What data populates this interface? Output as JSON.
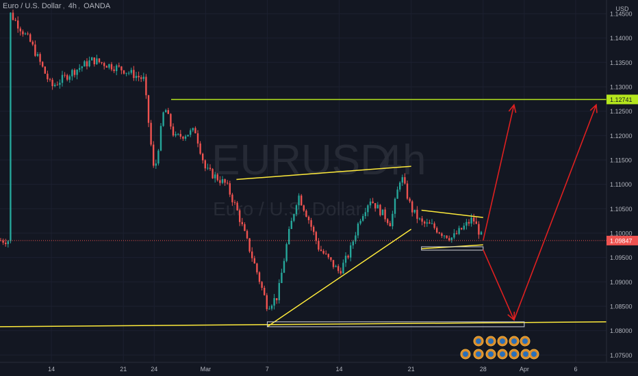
{
  "header": {
    "symbol_name": "Euro / U.S. Dollar",
    "timeframe": "4h",
    "broker": "OANDA"
  },
  "watermark": {
    "symbol": "EURUSD",
    "timeframe": "4h",
    "description": "Euro / U.S. Dollar"
  },
  "price_axis": {
    "currency": "USD",
    "ticks": [
      "1.14500",
      "1.14000",
      "1.13500",
      "1.13000",
      "1.12500",
      "1.12000",
      "1.11500",
      "1.11000",
      "1.10500",
      "1.10000",
      "1.09500",
      "1.09000",
      "1.08500",
      "1.08000",
      "1.07500"
    ],
    "level_label": "1.12741",
    "current_label": "1.09847"
  },
  "time_axis": {
    "ticks": [
      "14",
      "21",
      "24",
      "Mar",
      "7",
      "14",
      "21",
      "28",
      "Apr",
      "6"
    ]
  },
  "colors": {
    "background": "#131722",
    "up": "#26a69a",
    "down": "#ef5350",
    "trendline": "#ffeb3b",
    "level_line": "#b5e61d",
    "arrow": "#e02020",
    "axis_text": "#b2b5be"
  },
  "chart_data": {
    "type": "candlestick",
    "instrument": "EURUSD",
    "timeframe": "4h",
    "x_range": [
      "Feb 9",
      "Apr 9"
    ],
    "ylim": [
      1.0735,
      1.1478
    ],
    "last_price": 1.09847,
    "resistance_level": 1.12741,
    "support_level": 1.081,
    "candle_path": [
      {
        "date": "Feb 10",
        "close": 1.145
      },
      {
        "date": "Feb 11",
        "close": 1.142
      },
      {
        "date": "Feb 12",
        "close": 1.139
      },
      {
        "date": "Feb 14",
        "close": 1.13
      },
      {
        "date": "Feb 16",
        "close": 1.133
      },
      {
        "date": "Feb 18",
        "close": 1.1355
      },
      {
        "date": "Feb 21",
        "close": 1.1335
      },
      {
        "date": "Feb 23",
        "close": 1.1315
      },
      {
        "date": "Feb 24",
        "close": 1.112
      },
      {
        "date": "Feb 25",
        "close": 1.126
      },
      {
        "date": "Feb 26",
        "close": 1.1195
      },
      {
        "date": "Feb 28",
        "close": 1.121
      },
      {
        "date": "Mar 1",
        "close": 1.113
      },
      {
        "date": "Mar 3",
        "close": 1.11
      },
      {
        "date": "Mar 4",
        "close": 1.105
      },
      {
        "date": "Mar 6",
        "close": 1.092
      },
      {
        "date": "Mar 7",
        "close": 1.085
      },
      {
        "date": "Mar 8",
        "close": 1.087
      },
      {
        "date": "Mar 9",
        "close": 1.099
      },
      {
        "date": "Mar 10",
        "close": 1.108
      },
      {
        "date": "Mar 11",
        "close": 1.103
      },
      {
        "date": "Mar 12",
        "close": 1.097
      },
      {
        "date": "Mar 14",
        "close": 1.092
      },
      {
        "date": "Mar 15",
        "close": 1.096
      },
      {
        "date": "Mar 16",
        "close": 1.103
      },
      {
        "date": "Mar 17",
        "close": 1.107
      },
      {
        "date": "Mar 18",
        "close": 1.1045
      },
      {
        "date": "Mar 19",
        "close": 1.102
      },
      {
        "date": "Mar 20",
        "close": 1.112
      },
      {
        "date": "Mar 21",
        "close": 1.105
      },
      {
        "date": "Mar 22",
        "close": 1.102
      },
      {
        "date": "Mar 23",
        "close": 1.1015
      },
      {
        "date": "Mar 24",
        "close": 1.1
      },
      {
        "date": "Mar 25",
        "close": 1.099
      },
      {
        "date": "Mar 26",
        "close": 1.101
      },
      {
        "date": "Mar 27",
        "close": 1.103
      },
      {
        "date": "Mar 28",
        "close": 1.0985
      }
    ],
    "annotations": {
      "ascending_upper_trendline": [
        {
          "date": "Mar 4",
          "price": 1.111
        },
        {
          "date": "Mar 21",
          "price": 1.1137
        }
      ],
      "ascending_lower_trendline": [
        {
          "date": "Mar 7",
          "price": 1.0808
        },
        {
          "date": "Mar 21",
          "price": 1.1008
        }
      ],
      "pennant_upper": [
        {
          "date": "Mar 22",
          "price": 1.1047
        },
        {
          "date": "Mar 28",
          "price": 1.1032
        }
      ],
      "pennant_lower": [
        {
          "date": "Mar 22",
          "price": 1.0968
        },
        {
          "date": "Mar 28",
          "price": 1.0976
        }
      ],
      "pennant_box": {
        "from": "Mar 22",
        "to": "Mar 28",
        "price_low": 1.0965,
        "price_high": 1.0972
      },
      "support_box": {
        "from": "Mar 7",
        "to": "Apr 1",
        "price_low": 1.0808,
        "price_high": 1.0818
      },
      "support_line": [
        {
          "date": "Feb 9",
          "price": 1.0808
        },
        {
          "date": "Apr 9",
          "price": 1.0818
        }
      ],
      "bullish_arrow_1": [
        {
          "date": "Mar 28",
          "price": 1.0985
        },
        {
          "date": "Mar 31",
          "price": 1.1263
        }
      ],
      "bearish_arrow": [
        {
          "date": "Mar 28",
          "price": 1.0966
        },
        {
          "date": "Mar 31",
          "price": 1.0822
        }
      ],
      "bullish_arrow_2": [
        {
          "date": "Mar 31",
          "price": 1.0822
        },
        {
          "date": "Apr 8",
          "price": 1.1263
        }
      ]
    }
  }
}
